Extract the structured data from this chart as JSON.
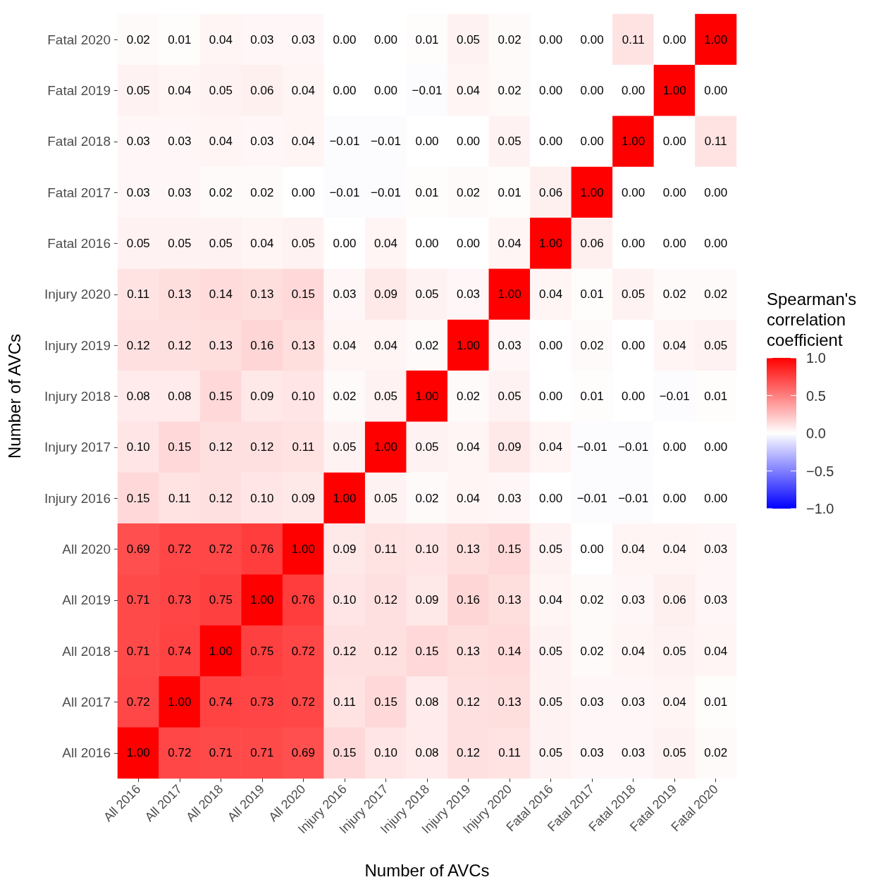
{
  "chart_data": {
    "type": "heatmap",
    "xlabel": "Number of AVCs",
    "ylabel": "Number of AVCs",
    "legend_title": "Spearman's correlation coefficient",
    "categories": [
      "All 2016",
      "All 2017",
      "All 2018",
      "All 2019",
      "All 2020",
      "Injury 2016",
      "Injury 2017",
      "Injury 2018",
      "Injury 2019",
      "Injury 2020",
      "Fatal 2016",
      "Fatal 2017",
      "Fatal 2018",
      "Fatal 2019",
      "Fatal 2020"
    ],
    "y_categories": [
      "Fatal 2020",
      "Fatal 2019",
      "Fatal 2018",
      "Fatal 2017",
      "Fatal 2016",
      "Injury 2020",
      "Injury 2019",
      "Injury 2018",
      "Injury 2017",
      "Injury 2016",
      "All 2020",
      "All 2019",
      "All 2018",
      "All 2017",
      "All 2016"
    ],
    "cells": [
      [
        0.02,
        0.01,
        0.04,
        0.03,
        0.03,
        0.0,
        0.0,
        0.01,
        0.05,
        0.02,
        0.0,
        0.0,
        0.11,
        0.0,
        1.0
      ],
      [
        0.05,
        0.04,
        0.05,
        0.06,
        0.04,
        0.0,
        0.0,
        -0.01,
        0.04,
        0.02,
        0.0,
        0.0,
        0.0,
        1.0,
        0.0
      ],
      [
        0.03,
        0.03,
        0.04,
        0.03,
        0.04,
        -0.01,
        -0.01,
        0.0,
        0.0,
        0.05,
        0.0,
        0.0,
        1.0,
        0.0,
        0.11
      ],
      [
        0.03,
        0.03,
        0.02,
        0.02,
        0.0,
        -0.01,
        -0.01,
        0.01,
        0.02,
        0.01,
        0.06,
        1.0,
        0.0,
        0.0,
        0.0
      ],
      [
        0.05,
        0.05,
        0.05,
        0.04,
        0.05,
        0.0,
        0.04,
        0.0,
        0.0,
        0.04,
        1.0,
        0.06,
        0.0,
        0.0,
        0.0
      ],
      [
        0.11,
        0.13,
        0.14,
        0.13,
        0.15,
        0.03,
        0.09,
        0.05,
        0.03,
        1.0,
        0.04,
        0.01,
        0.05,
        0.02,
        0.02
      ],
      [
        0.12,
        0.12,
        0.13,
        0.16,
        0.13,
        0.04,
        0.04,
        0.02,
        1.0,
        0.03,
        0.0,
        0.02,
        0.0,
        0.04,
        0.05
      ],
      [
        0.08,
        0.08,
        0.15,
        0.09,
        0.1,
        0.02,
        0.05,
        1.0,
        0.02,
        0.05,
        0.0,
        0.01,
        0.0,
        -0.01,
        0.01
      ],
      [
        0.1,
        0.15,
        0.12,
        0.12,
        0.11,
        0.05,
        1.0,
        0.05,
        0.04,
        0.09,
        0.04,
        -0.01,
        -0.01,
        0.0,
        0.0
      ],
      [
        0.15,
        0.11,
        0.12,
        0.1,
        0.09,
        1.0,
        0.05,
        0.02,
        0.04,
        0.03,
        0.0,
        -0.01,
        -0.01,
        0.0,
        0.0
      ],
      [
        0.69,
        0.72,
        0.72,
        0.76,
        1.0,
        0.09,
        0.11,
        0.1,
        0.13,
        0.15,
        0.05,
        0.0,
        0.04,
        0.04,
        0.03
      ],
      [
        0.71,
        0.73,
        0.75,
        1.0,
        0.76,
        0.1,
        0.12,
        0.09,
        0.16,
        0.13,
        0.04,
        0.02,
        0.03,
        0.06,
        0.03
      ],
      [
        0.71,
        0.74,
        1.0,
        0.75,
        0.72,
        0.12,
        0.12,
        0.15,
        0.13,
        0.14,
        0.05,
        0.02,
        0.04,
        0.05,
        0.04
      ],
      [
        0.72,
        1.0,
        0.74,
        0.73,
        0.72,
        0.11,
        0.15,
        0.08,
        0.12,
        0.13,
        0.05,
        0.03,
        0.03,
        0.04,
        0.01
      ],
      [
        1.0,
        0.72,
        0.71,
        0.71,
        0.69,
        0.15,
        0.1,
        0.08,
        0.12,
        0.11,
        0.05,
        0.03,
        0.03,
        0.05,
        0.02
      ]
    ],
    "cell_labels": [
      [
        "0.02",
        "0.01",
        "0.04",
        "0.03",
        "0.03",
        "0.00",
        "0.00",
        "0.01",
        "0.05",
        "0.02",
        "0.00",
        "0.00",
        "0.11",
        "0.00",
        "1.00"
      ],
      [
        "0.05",
        "0.04",
        "0.05",
        "0.06",
        "0.04",
        "0.00",
        "0.00",
        "−0.01",
        "0.04",
        "0.02",
        "0.00",
        "0.00",
        "0.00",
        "1.00",
        "0.00"
      ],
      [
        "0.03",
        "0.03",
        "0.04",
        "0.03",
        "0.04",
        "−0.01",
        "−0.01",
        "0.00",
        "0.00",
        "0.05",
        "0.00",
        "0.00",
        "1.00",
        "0.00",
        "0.11"
      ],
      [
        "0.03",
        "0.03",
        "0.02",
        "0.02",
        "0.00",
        "−0.01",
        "−0.01",
        "0.01",
        "0.02",
        "0.01",
        "0.06",
        "1.00",
        "0.00",
        "0.00",
        "0.00"
      ],
      [
        "0.05",
        "0.05",
        "0.05",
        "0.04",
        "0.05",
        "0.00",
        "0.04",
        "0.00",
        "0.00",
        "0.04",
        "1.00",
        "0.06",
        "0.00",
        "0.00",
        "0.00"
      ],
      [
        "0.11",
        "0.13",
        "0.14",
        "0.13",
        "0.15",
        "0.03",
        "0.09",
        "0.05",
        "0.03",
        "1.00",
        "0.04",
        "0.01",
        "0.05",
        "0.02",
        "0.02"
      ],
      [
        "0.12",
        "0.12",
        "0.13",
        "0.16",
        "0.13",
        "0.04",
        "0.04",
        "0.02",
        "1.00",
        "0.03",
        "0.00",
        "0.02",
        "0.00",
        "0.04",
        "0.05"
      ],
      [
        "0.08",
        "0.08",
        "0.15",
        "0.09",
        "0.10",
        "0.02",
        "0.05",
        "1.00",
        "0.02",
        "0.05",
        "0.00",
        "0.01",
        "0.00",
        "−0.01",
        "0.01"
      ],
      [
        "0.10",
        "0.15",
        "0.12",
        "0.12",
        "0.11",
        "0.05",
        "1.00",
        "0.05",
        "0.04",
        "0.09",
        "0.04",
        "−0.01",
        "−0.01",
        "0.00",
        "0.00"
      ],
      [
        "0.15",
        "0.11",
        "0.12",
        "0.10",
        "0.09",
        "1.00",
        "0.05",
        "0.02",
        "0.04",
        "0.03",
        "0.00",
        "−0.01",
        "−0.01",
        "0.00",
        "0.00"
      ],
      [
        "0.69",
        "0.72",
        "0.72",
        "0.76",
        "1.00",
        "0.09",
        "0.11",
        "0.10",
        "0.13",
        "0.15",
        "0.05",
        "0.00",
        "0.04",
        "0.04",
        "0.03"
      ],
      [
        "0.71",
        "0.73",
        "0.75",
        "1.00",
        "0.76",
        "0.10",
        "0.12",
        "0.09",
        "0.16",
        "0.13",
        "0.04",
        "0.02",
        "0.03",
        "0.06",
        "0.03"
      ],
      [
        "0.71",
        "0.74",
        "1.00",
        "0.75",
        "0.72",
        "0.12",
        "0.12",
        "0.15",
        "0.13",
        "0.14",
        "0.05",
        "0.02",
        "0.04",
        "0.05",
        "0.04"
      ],
      [
        "0.72",
        "1.00",
        "0.74",
        "0.73",
        "0.72",
        "0.11",
        "0.15",
        "0.08",
        "0.12",
        "0.13",
        "0.05",
        "0.03",
        "0.03",
        "0.04",
        "0.01"
      ],
      [
        "1.00",
        "0.72",
        "0.71",
        "0.71",
        "0.69",
        "0.15",
        "0.10",
        "0.08",
        "0.12",
        "0.11",
        "0.05",
        "0.03",
        "0.03",
        "0.05",
        "0.02"
      ]
    ],
    "clim": [
      -1,
      1
    ],
    "cticks": [
      {
        "value": 1,
        "label": "1.0"
      },
      {
        "value": 0.5,
        "label": "0.5"
      },
      {
        "value": 0,
        "label": "0.0"
      },
      {
        "value": -0.5,
        "label": "−0.5"
      },
      {
        "value": -1,
        "label": "−1.0"
      }
    ]
  }
}
